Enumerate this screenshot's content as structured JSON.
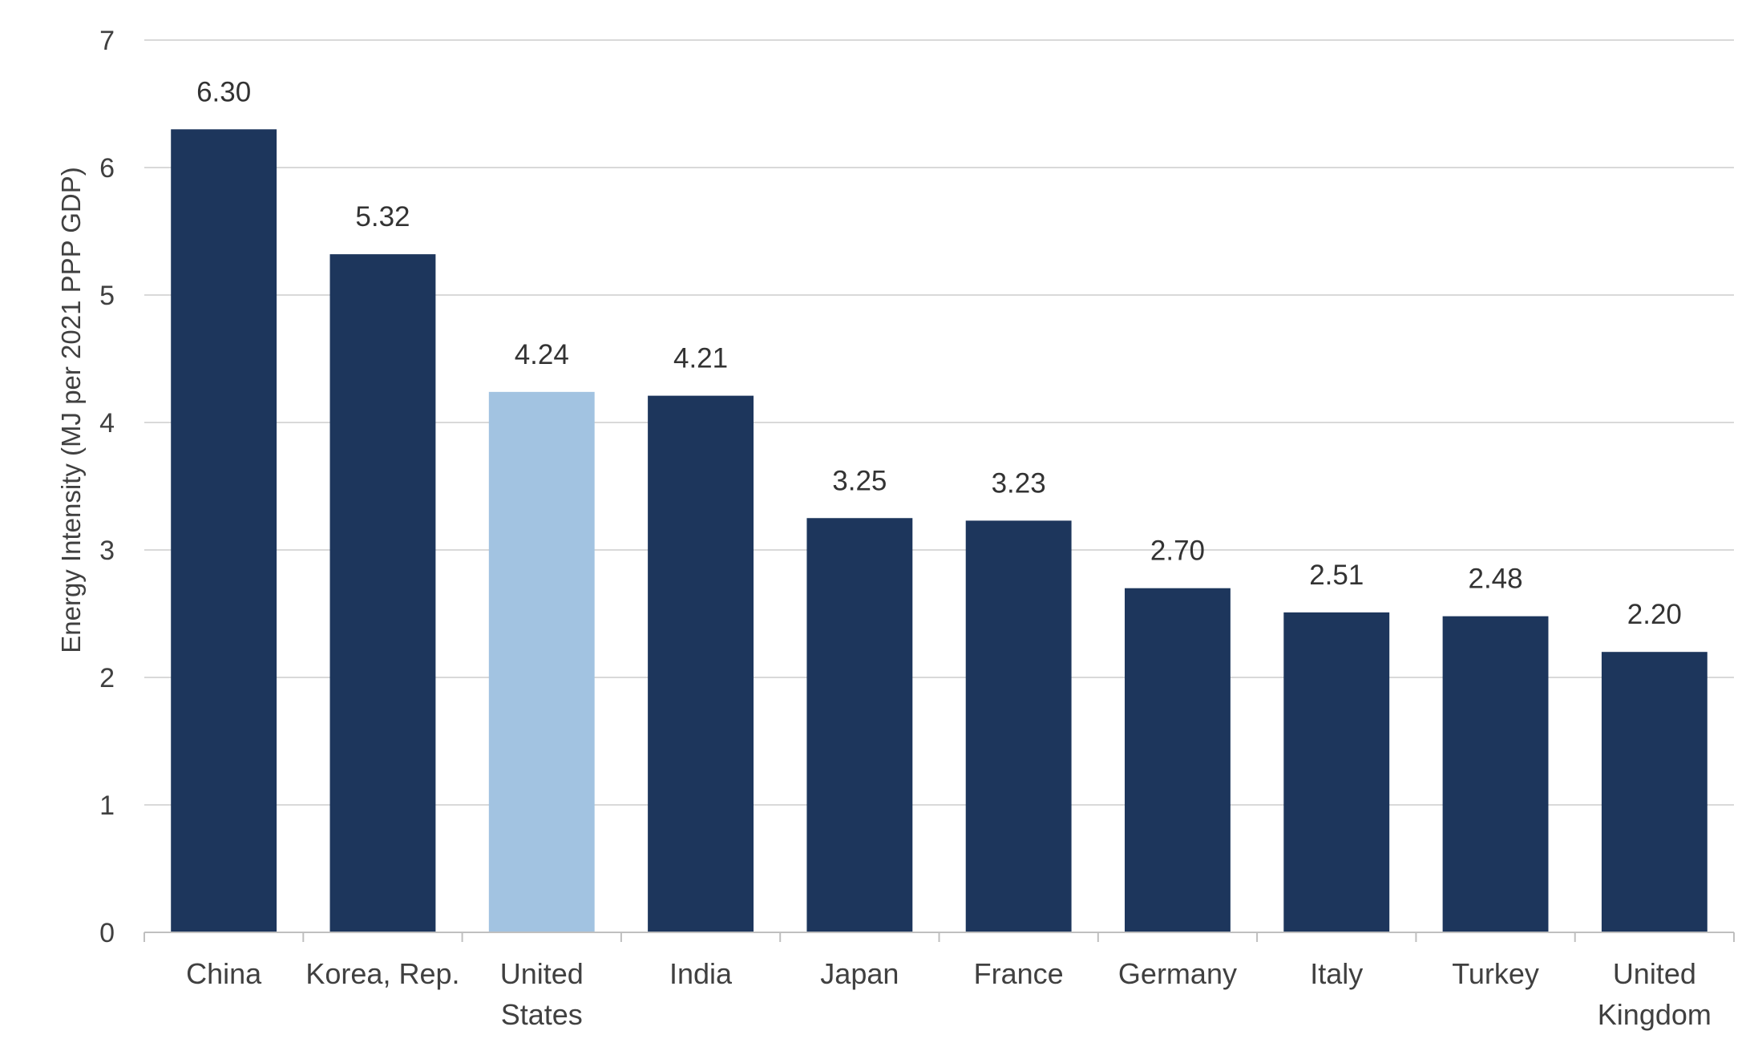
{
  "chart_data": {
    "type": "bar",
    "categories": [
      [
        "China"
      ],
      [
        "Korea, Rep."
      ],
      [
        "United",
        "States"
      ],
      [
        "India"
      ],
      [
        "Japan"
      ],
      [
        "France"
      ],
      [
        "Germany"
      ],
      [
        "Italy"
      ],
      [
        "Turkey"
      ],
      [
        "United",
        "Kingdom"
      ]
    ],
    "values": [
      6.3,
      5.32,
      4.24,
      4.21,
      3.25,
      3.23,
      2.7,
      2.51,
      2.48,
      2.2
    ],
    "value_labels": [
      "6.30",
      "5.32",
      "4.24",
      "4.21",
      "3.25",
      "3.23",
      "2.70",
      "2.51",
      "2.48",
      "2.20"
    ],
    "ylabel": "Energy Intensity (MJ per 2021 PPP GDP)",
    "xlabel": "",
    "ylim": [
      0,
      7
    ],
    "yticks": [
      0,
      1,
      2,
      3,
      4,
      5,
      6,
      7
    ],
    "grid": true,
    "legend": "none",
    "colors": {
      "default": "#1d365c",
      "highlight": "#a2c3e1",
      "highlight_index": 2
    }
  }
}
